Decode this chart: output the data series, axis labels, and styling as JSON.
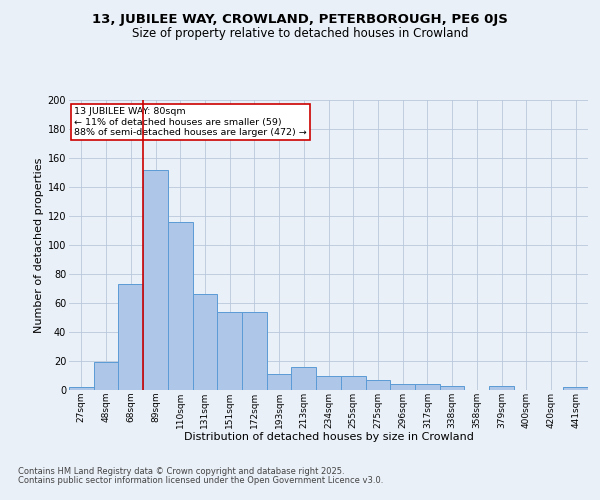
{
  "title1": "13, JUBILEE WAY, CROWLAND, PETERBOROUGH, PE6 0JS",
  "title2": "Size of property relative to detached houses in Crowland",
  "xlabel": "Distribution of detached houses by size in Crowland",
  "ylabel": "Number of detached properties",
  "footer1": "Contains HM Land Registry data © Crown copyright and database right 2025.",
  "footer2": "Contains public sector information licensed under the Open Government Licence v3.0.",
  "bar_labels": [
    "27sqm",
    "48sqm",
    "68sqm",
    "89sqm",
    "110sqm",
    "131sqm",
    "151sqm",
    "172sqm",
    "193sqm",
    "213sqm",
    "234sqm",
    "255sqm",
    "275sqm",
    "296sqm",
    "317sqm",
    "338sqm",
    "358sqm",
    "379sqm",
    "400sqm",
    "420sqm",
    "441sqm"
  ],
  "bar_values": [
    2,
    19,
    73,
    152,
    116,
    66,
    54,
    54,
    11,
    16,
    10,
    10,
    7,
    4,
    4,
    3,
    0,
    3,
    0,
    0,
    2
  ],
  "bar_color": "#aec6e8",
  "bar_edge_color": "#5b9bd5",
  "vline_x": 2.5,
  "vline_color": "#cc0000",
  "annotation_title": "13 JUBILEE WAY: 80sqm",
  "annotation_line1": "← 11% of detached houses are smaller (59)",
  "annotation_line2": "88% of semi-detached houses are larger (472) →",
  "annotation_box_color": "#cc0000",
  "ylim": [
    0,
    200
  ],
  "yticks": [
    0,
    20,
    40,
    60,
    80,
    100,
    120,
    140,
    160,
    180,
    200
  ],
  "bg_color": "#eaf0f8",
  "plot_bg_color": "#eaf0f8",
  "title_fontsize": 9.5,
  "subtitle_fontsize": 8.5,
  "axis_label_fontsize": 8,
  "tick_fontsize": 7,
  "footer_fontsize": 6
}
